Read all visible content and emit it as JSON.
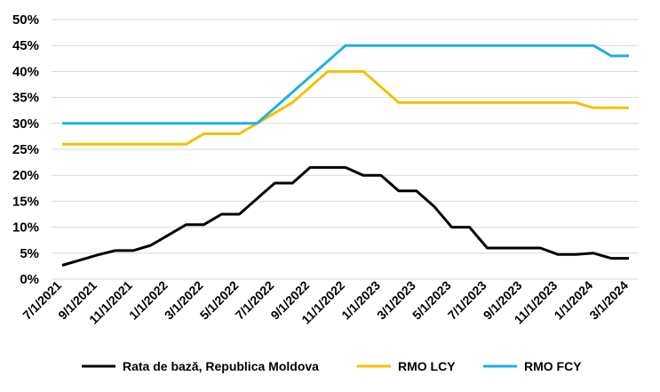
{
  "chart_data": {
    "type": "line",
    "title": "",
    "xlabel": "",
    "ylabel": "",
    "ylim": [
      0,
      50
    ],
    "yticks": [
      "0%",
      "5%",
      "10%",
      "15%",
      "20%",
      "25%",
      "30%",
      "35%",
      "40%",
      "45%",
      "50%"
    ],
    "xticks": [
      "7/1/2021",
      "9/1/2021",
      "11/1/2021",
      "1/1/2022",
      "3/1/2022",
      "5/1/2022",
      "7/1/2022",
      "9/1/2022",
      "11/1/2022",
      "1/1/2023",
      "3/1/2023",
      "5/1/2023",
      "7/1/2023",
      "9/1/2023",
      "11/1/2023",
      "1/1/2024",
      "3/1/2024"
    ],
    "x": [
      "2021-07",
      "2021-08",
      "2021-09",
      "2021-10",
      "2021-11",
      "2021-12",
      "2022-01",
      "2022-02",
      "2022-03",
      "2022-04",
      "2022-05",
      "2022-06",
      "2022-07",
      "2022-08",
      "2022-09",
      "2022-10",
      "2022-11",
      "2022-12",
      "2023-01",
      "2023-02",
      "2023-03",
      "2023-04",
      "2023-05",
      "2023-06",
      "2023-07",
      "2023-08",
      "2023-09",
      "2023-10",
      "2023-11",
      "2023-12",
      "2024-01",
      "2024-02",
      "2024-03"
    ],
    "grid": true,
    "legend_position": "bottom",
    "series": [
      {
        "name": "Rata de bază, Republica Moldova",
        "color": "#000000",
        "values": [
          2.65,
          3.65,
          4.65,
          5.5,
          5.5,
          6.5,
          8.5,
          10.5,
          10.5,
          12.5,
          12.5,
          15.5,
          18.5,
          18.5,
          21.5,
          21.5,
          21.5,
          20.0,
          20.0,
          17.0,
          17.0,
          14.0,
          10.0,
          10.0,
          6.0,
          6.0,
          6.0,
          6.0,
          4.75,
          4.75,
          5.0,
          4.0,
          4.0
        ]
      },
      {
        "name": "RMO LCY",
        "color": "#f5c000",
        "values": [
          26,
          26,
          26,
          26,
          26,
          26,
          26,
          26,
          28,
          28,
          28,
          30,
          32,
          34,
          37,
          40,
          40,
          40,
          37,
          34,
          34,
          34,
          34,
          34,
          34,
          34,
          34,
          34,
          34,
          34,
          33,
          33,
          33
        ]
      },
      {
        "name": "RMO FCY",
        "color": "#1fb0e6",
        "values": [
          30,
          30,
          30,
          30,
          30,
          30,
          30,
          30,
          30,
          30,
          30,
          30,
          33,
          36,
          39,
          42,
          45,
          45,
          45,
          45,
          45,
          45,
          45,
          45,
          45,
          45,
          45,
          45,
          45,
          45,
          45,
          43,
          43
        ]
      }
    ]
  }
}
